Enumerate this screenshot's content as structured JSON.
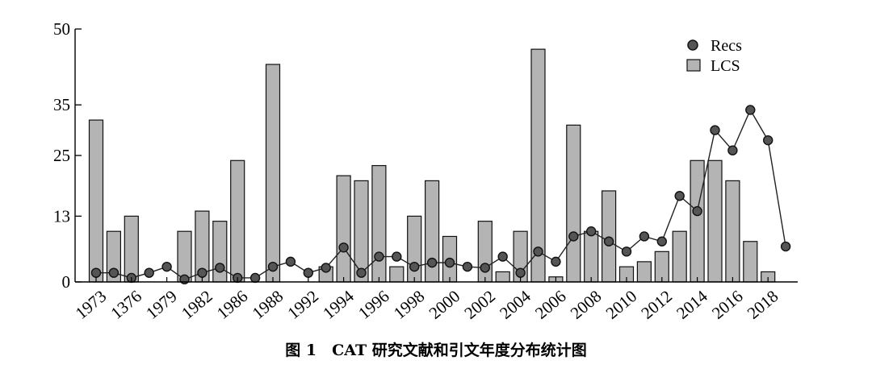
{
  "caption": "图 1　CAT 研究文献和引文年度分布统计图",
  "chart_data": {
    "type": "bar",
    "yticks": [
      0,
      13,
      25,
      35,
      50
    ],
    "ylim": [
      0,
      50
    ],
    "x_tick_labels": [
      "1973",
      "1376",
      "1979",
      "1982",
      "1986",
      "1988",
      "1992",
      "1994",
      "1996",
      "1998",
      "2000",
      "2002",
      "2004",
      "2006",
      "2008",
      "2010",
      "2012",
      "2014",
      "2016",
      "2018"
    ],
    "x_tick_positions": [
      0,
      2,
      4,
      6,
      8,
      10,
      12,
      14,
      16,
      18,
      20,
      22,
      24,
      26,
      28,
      30,
      32,
      34,
      36,
      38
    ],
    "legend": {
      "position": "top-right",
      "entries": [
        "Recs",
        "LCS"
      ]
    },
    "series": [
      {
        "name": "LCS",
        "type": "bar",
        "color": "#b4b4b4",
        "values": [
          32,
          10,
          13,
          0,
          0,
          10,
          14,
          12,
          24,
          0,
          43,
          0,
          0,
          3,
          21,
          20,
          23,
          3,
          13,
          20,
          9,
          0,
          12,
          2,
          10,
          46,
          1,
          31,
          10,
          18,
          3,
          4,
          6,
          10,
          24,
          24,
          20,
          8,
          2,
          0
        ]
      },
      {
        "name": "Recs",
        "type": "line",
        "color": "#555555",
        "values": [
          1.8,
          1.8,
          0.8,
          1.8,
          3,
          0.5,
          1.8,
          2.8,
          0.8,
          0.8,
          3,
          4,
          1.8,
          2.8,
          6.8,
          1.8,
          5,
          5,
          3,
          3.8,
          3.8,
          3,
          2.8,
          5,
          1.8,
          6,
          4,
          9,
          10,
          8,
          6,
          9,
          8,
          17,
          14,
          30,
          26,
          34,
          28,
          7
        ]
      }
    ]
  }
}
